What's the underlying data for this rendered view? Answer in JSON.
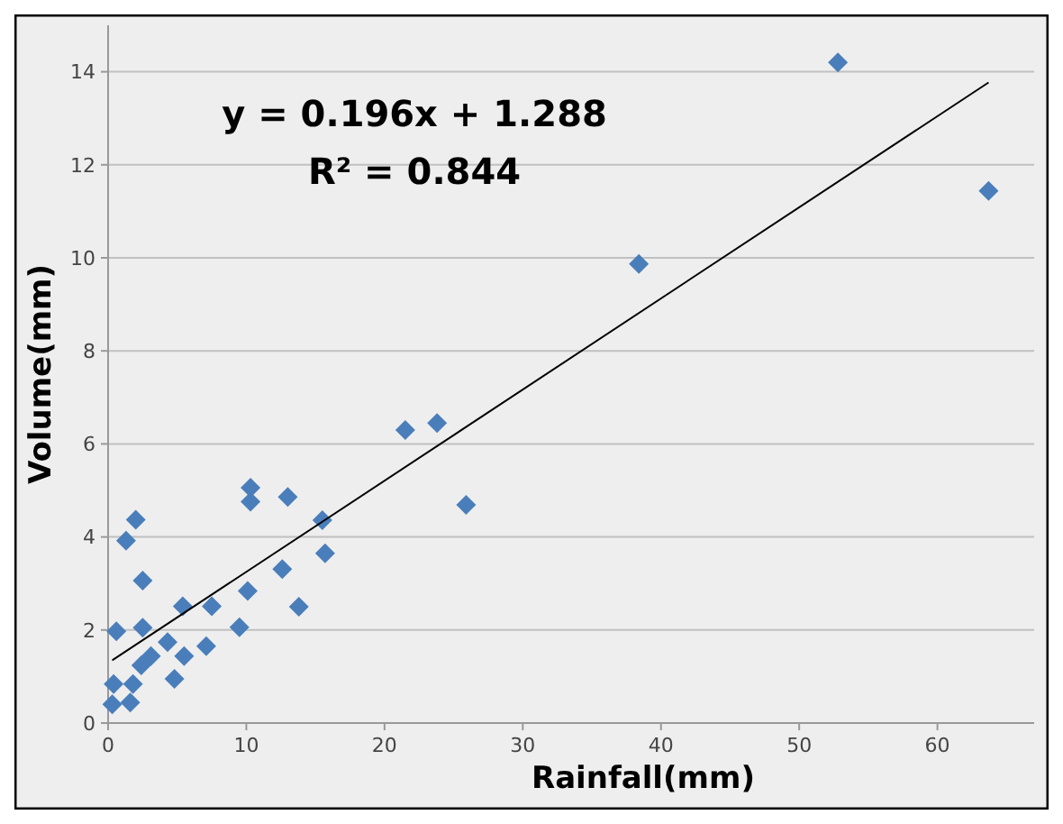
{
  "chart_data": {
    "type": "scatter",
    "xlabel": "Rainfall(mm)",
    "ylabel": "Volume(mm)",
    "xlim": [
      0,
      67
    ],
    "ylim": [
      0,
      15
    ],
    "xticks": [
      0,
      10,
      20,
      30,
      40,
      50,
      60
    ],
    "yticks": [
      0,
      2,
      4,
      6,
      8,
      10,
      12,
      14
    ],
    "grid": "y",
    "marker": "diamond",
    "annotations": [
      "y = 0.196x + 1.288",
      "R² = 0.844"
    ],
    "series": [
      {
        "color": "#4a7ebb",
        "x": [
          0.3,
          0.4,
          0.6,
          1.3,
          1.6,
          1.8,
          2.0,
          2.5,
          2.5,
          2.4,
          3.1,
          4.3,
          4.8,
          5.4,
          5.5,
          7.1,
          7.5,
          9.5,
          10.1,
          10.3,
          10.3,
          13.0,
          12.6,
          13.8,
          15.5,
          15.7,
          25.9,
          21.5,
          23.8,
          38.4,
          52.8,
          63.7
        ],
        "values": [
          0.4,
          0.84,
          1.97,
          3.92,
          0.44,
          0.84,
          4.37,
          3.06,
          2.05,
          1.24,
          1.44,
          1.74,
          0.95,
          2.51,
          1.44,
          1.65,
          2.51,
          2.06,
          2.84,
          5.06,
          4.76,
          4.86,
          3.31,
          2.5,
          4.36,
          3.65,
          4.69,
          6.3,
          6.45,
          9.87,
          14.2,
          11.44
        ]
      },
      {
        "type": "line",
        "color": "#000000",
        "marker": "none",
        "x": [
          0.3,
          63.7
        ],
        "values": [
          1.35,
          13.77
        ]
      }
    ]
  }
}
